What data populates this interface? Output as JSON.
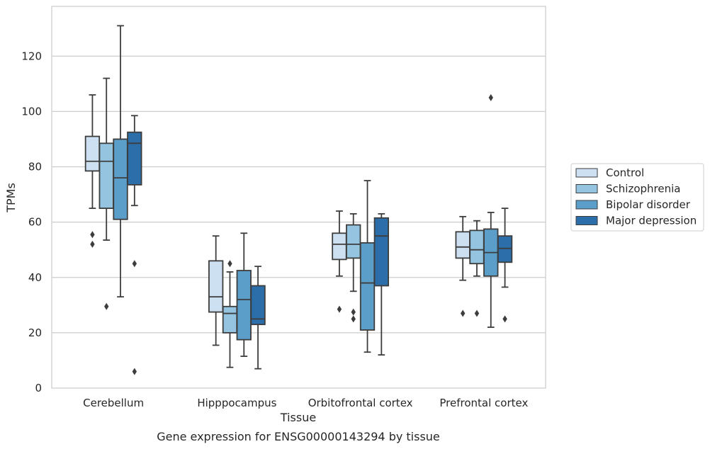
{
  "chart_data": {
    "type": "box",
    "xlabel": "Tissue",
    "ylabel": "TPMs",
    "caption": "Gene expression for ENSG00000143294 by tissue",
    "ylim": [
      0,
      138
    ],
    "yticks": [
      0,
      20,
      40,
      60,
      80,
      100,
      120
    ],
    "grid": "horizontal",
    "legend_position": "right",
    "categories": [
      "Cerebellum",
      "Hipppocampus",
      "Orbitofrontal cortex",
      "Prefrontal cortex"
    ],
    "series": [
      {
        "name": "Control",
        "color": "#cde0f1",
        "boxes": [
          {
            "whislo": 65,
            "q1": 78.5,
            "med": 82,
            "q3": 91,
            "whishi": 106,
            "fliers": [
              55.5,
              52
            ]
          },
          {
            "whislo": 15.5,
            "q1": 27.5,
            "med": 33,
            "q3": 46,
            "whishi": 55,
            "fliers": []
          },
          {
            "whislo": 40.5,
            "q1": 46.5,
            "med": 52,
            "q3": 56,
            "whishi": 64,
            "fliers": [
              28.5
            ]
          },
          {
            "whislo": 39,
            "q1": 47,
            "med": 51,
            "q3": 56.5,
            "whishi": 62,
            "fliers": [
              27
            ]
          }
        ]
      },
      {
        "name": "Schizophrenia",
        "color": "#94c4df",
        "boxes": [
          {
            "whislo": 53.5,
            "q1": 65,
            "med": 82,
            "q3": 88.5,
            "whishi": 112,
            "fliers": [
              29.5
            ]
          },
          {
            "whislo": 7.5,
            "q1": 20,
            "med": 27,
            "q3": 29.5,
            "whishi": 42,
            "fliers": [
              45
            ]
          },
          {
            "whislo": 35,
            "q1": 47,
            "med": 52,
            "q3": 59,
            "whishi": 63,
            "fliers": [
              27.5,
              25
            ]
          },
          {
            "whislo": 40.5,
            "q1": 45,
            "med": 50,
            "q3": 57,
            "whishi": 60.5,
            "fliers": [
              27
            ]
          }
        ]
      },
      {
        "name": "Bipolar disorder",
        "color": "#5b9ec9",
        "boxes": [
          {
            "whislo": 33,
            "q1": 61,
            "med": 76,
            "q3": 90,
            "whishi": 131,
            "fliers": []
          },
          {
            "whislo": 11.5,
            "q1": 17.5,
            "med": 32,
            "q3": 42.5,
            "whishi": 56,
            "fliers": []
          },
          {
            "whislo": 13,
            "q1": 21,
            "med": 38,
            "q3": 52.5,
            "whishi": 75,
            "fliers": []
          },
          {
            "whislo": 22,
            "q1": 40.5,
            "med": 49,
            "q3": 57.5,
            "whishi": 63.5,
            "fliers": [
              105
            ]
          }
        ]
      },
      {
        "name": "Major depression",
        "color": "#2b6ea9",
        "boxes": [
          {
            "whislo": 66,
            "q1": 73.5,
            "med": 88.5,
            "q3": 92.5,
            "whishi": 98.5,
            "fliers": [
              45,
              6
            ]
          },
          {
            "whislo": 7,
            "q1": 23,
            "med": 25,
            "q3": 37,
            "whishi": 44,
            "fliers": []
          },
          {
            "whislo": 12,
            "q1": 37,
            "med": 55,
            "q3": 61.5,
            "whishi": 63,
            "fliers": []
          },
          {
            "whislo": 36.5,
            "q1": 45.5,
            "med": 50.5,
            "q3": 55,
            "whishi": 65,
            "fliers": [
              25
            ]
          }
        ]
      }
    ]
  }
}
